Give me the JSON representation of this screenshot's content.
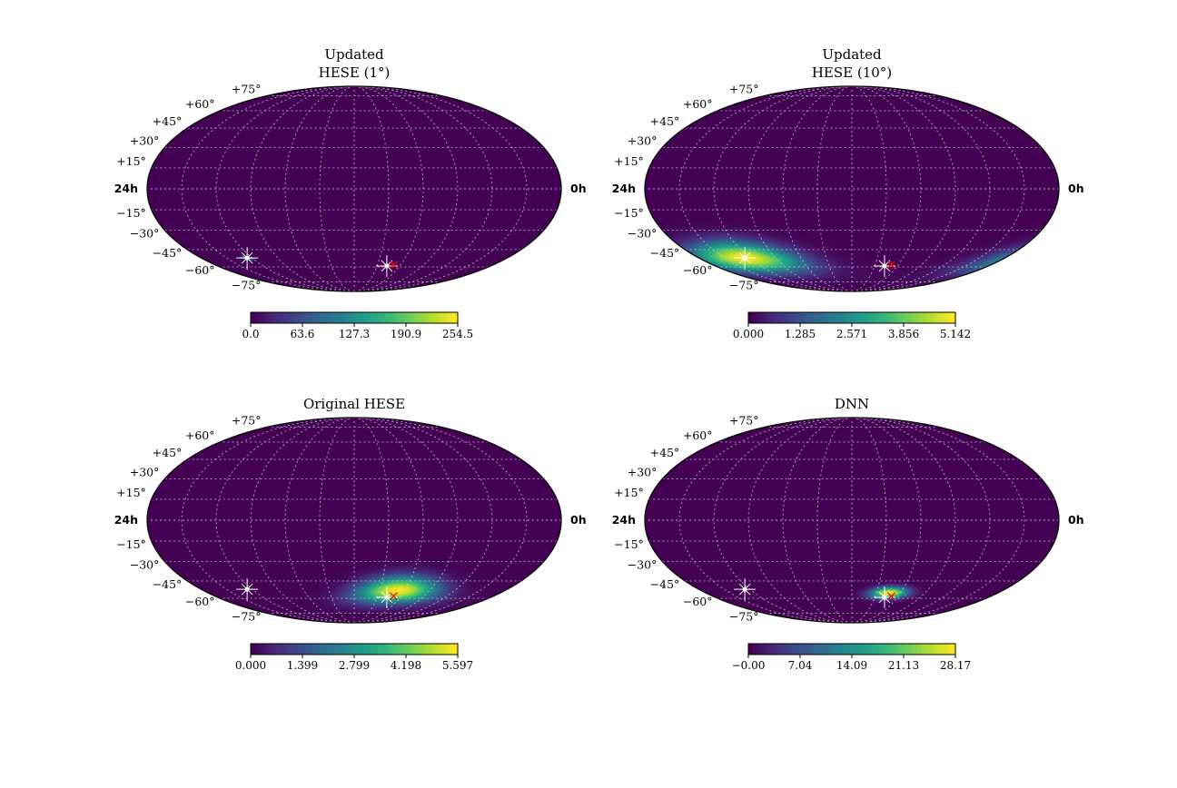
{
  "colormap": [
    "#440154",
    "#482878",
    "#3e4989",
    "#31688e",
    "#26828e",
    "#1f9e89",
    "#35b779",
    "#6ece58",
    "#b5de2b",
    "#fde725"
  ],
  "grid_color": "#c8c8d8",
  "marker_colors": {
    "observed": "#ffffff",
    "truth": "#ff0000"
  },
  "chart_data": [
    {
      "type": "heatmap",
      "projection": "mollweide",
      "title": [
        "Updated",
        "HESE (1°)"
      ],
      "ra_labels": {
        "left": "24h",
        "right": "0h"
      },
      "dec_labels": [
        "+75°",
        "+60°",
        "+45°",
        "+30°",
        "+15°",
        "−15°",
        "−30°",
        "−45°",
        "−60°",
        "−75°"
      ],
      "dec_values": [
        75,
        60,
        45,
        30,
        15,
        -15,
        -30,
        -45,
        -60,
        -75
      ],
      "colorbar": {
        "min": 0.0,
        "max": 254.5,
        "ticks": [
          "0.0",
          "63.6",
          "127.3",
          "190.9",
          "254.5"
        ]
      },
      "blobs": [
        {
          "lon": 126,
          "lat": -52,
          "amplitude": 1.0,
          "sigma_lon": 2,
          "sigma_lat": 1
        }
      ],
      "markers": [
        {
          "kind": "observed",
          "lon": 126,
          "lat": -52
        },
        {
          "kind": "observed",
          "lon": -43,
          "lat": -59
        },
        {
          "kind": "truth",
          "lon": -51,
          "lat": -58
        }
      ]
    },
    {
      "type": "heatmap",
      "projection": "mollweide",
      "title": [
        "Updated",
        "HESE (10°)"
      ],
      "ra_labels": {
        "left": "24h",
        "right": "0h"
      },
      "dec_labels": [
        "+75°",
        "+60°",
        "+45°",
        "+30°",
        "+15°",
        "−15°",
        "−30°",
        "−45°",
        "−60°",
        "−75°"
      ],
      "dec_values": [
        75,
        60,
        45,
        30,
        15,
        -15,
        -30,
        -45,
        -60,
        -75
      ],
      "colorbar": {
        "min": 0.0,
        "max": 5.142,
        "ticks": [
          "0.000",
          "1.285",
          "2.571",
          "3.856",
          "5.142"
        ]
      },
      "blobs": [
        {
          "lon": 126,
          "lat": -52,
          "amplitude": 1.0,
          "sigma_lon": 26,
          "sigma_lat": 9
        }
      ],
      "markers": [
        {
          "kind": "observed",
          "lon": 126,
          "lat": -52
        },
        {
          "kind": "observed",
          "lon": -43,
          "lat": -59
        },
        {
          "kind": "truth",
          "lon": -51,
          "lat": -58
        }
      ]
    },
    {
      "type": "heatmap",
      "projection": "mollweide",
      "title": [
        "Original HESE"
      ],
      "ra_labels": {
        "left": "24h",
        "right": "0h"
      },
      "dec_labels": [
        "+75°",
        "+60°",
        "+45°",
        "+30°",
        "+15°",
        "−15°",
        "−30°",
        "−45°",
        "−60°",
        "−75°"
      ],
      "dec_values": [
        75,
        60,
        45,
        30,
        15,
        -15,
        -30,
        -45,
        -60,
        -75
      ],
      "colorbar": {
        "min": 0.0,
        "max": 5.597,
        "ticks": [
          "0.000",
          "1.399",
          "2.799",
          "4.198",
          "5.597"
        ]
      },
      "blobs": [
        {
          "lon": -52,
          "lat": -53,
          "amplitude": 1.0,
          "sigma_lon": 20,
          "sigma_lat": 8
        }
      ],
      "markers": [
        {
          "kind": "observed",
          "lon": 126,
          "lat": -52
        },
        {
          "kind": "observed",
          "lon": -43,
          "lat": -59
        },
        {
          "kind": "truth",
          "lon": -51,
          "lat": -58
        }
      ]
    },
    {
      "type": "heatmap",
      "projection": "mollweide",
      "title": [
        "DNN"
      ],
      "ra_labels": {
        "left": "24h",
        "right": "0h"
      },
      "dec_labels": [
        "+75°",
        "+60°",
        "+45°",
        "+30°",
        "+15°",
        "−15°",
        "−30°",
        "−45°",
        "−60°",
        "−75°"
      ],
      "dec_values": [
        75,
        60,
        45,
        30,
        15,
        -15,
        -30,
        -45,
        -60,
        -75
      ],
      "colorbar": {
        "min": -0.0,
        "max": 28.17,
        "ticks": [
          "−0.00",
          "7.04",
          "14.09",
          "21.13",
          "28.17"
        ]
      },
      "blobs": [
        {
          "lon": -46,
          "lat": -55,
          "amplitude": 1.0,
          "sigma_lon": 9,
          "sigma_lat": 3.5
        }
      ],
      "markers": [
        {
          "kind": "observed",
          "lon": 126,
          "lat": -52
        },
        {
          "kind": "observed",
          "lon": -43,
          "lat": -59
        },
        {
          "kind": "truth",
          "lon": -51,
          "lat": -58
        }
      ]
    }
  ]
}
